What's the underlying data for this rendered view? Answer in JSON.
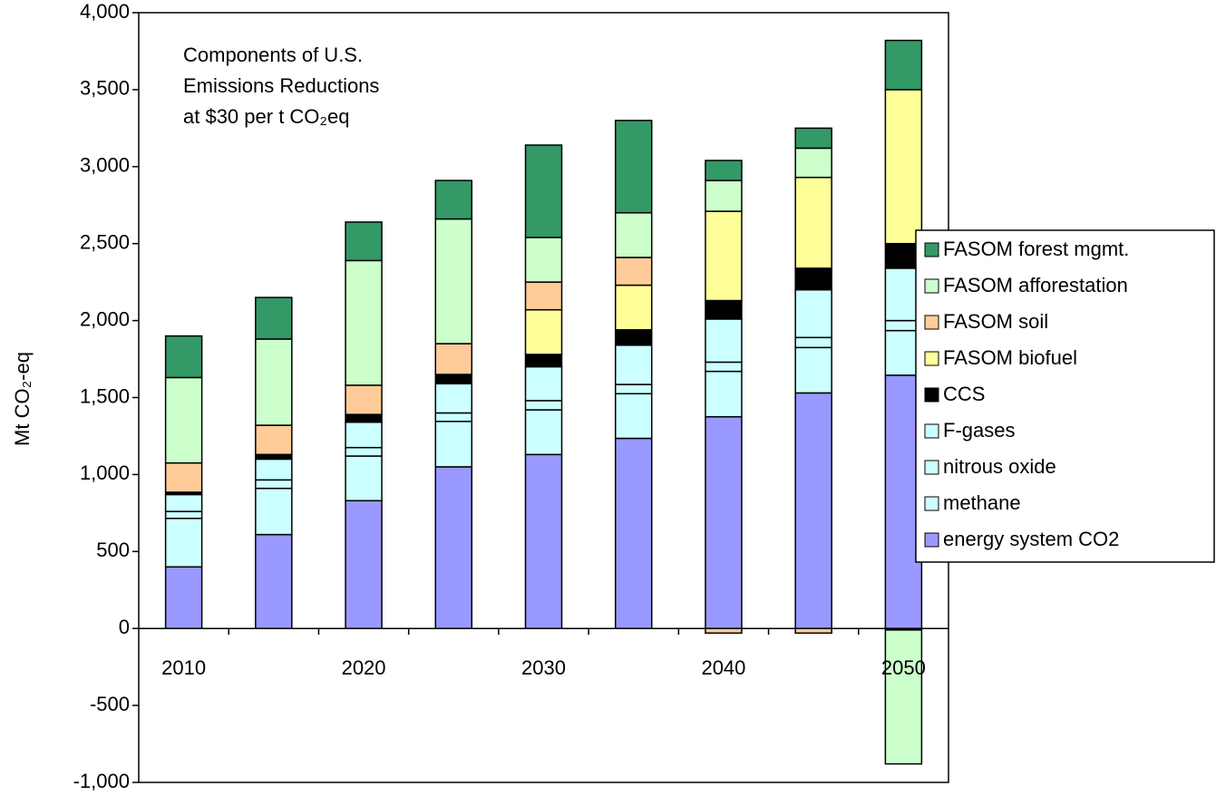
{
  "chart_data": {
    "type": "stacked_bar",
    "title": [
      "Components of U.S.",
      "Emissions Reductions",
      "at $30 per t CO₂eq"
    ],
    "y_label": "Mt CO₂-eq",
    "categories": [
      "2010",
      null,
      "2020",
      null,
      "2030",
      null,
      "2040",
      null,
      "2050"
    ],
    "series": [
      {
        "name": "energy system CO2",
        "color": "#9999ff",
        "values": [
          400,
          610,
          830,
          1050,
          1130,
          1235,
          1375,
          1530,
          1645
        ]
      },
      {
        "name": "methane",
        "color": "#ccffff",
        "values": [
          315,
          300,
          290,
          295,
          290,
          290,
          295,
          295,
          290
        ]
      },
      {
        "name": "nitrous oxide",
        "color": "#ccffff",
        "values": [
          45,
          55,
          55,
          55,
          60,
          60,
          60,
          65,
          65
        ]
      },
      {
        "name": "F-gases",
        "color": "#ccffff",
        "values": [
          110,
          135,
          165,
          190,
          220,
          255,
          280,
          310,
          340
        ]
      },
      {
        "name": "CCS",
        "color": "#000000",
        "values": [
          15,
          30,
          50,
          60,
          80,
          100,
          120,
          140,
          160
        ]
      },
      {
        "name": "FASOM biofuel",
        "color": "#ffff99",
        "values": [
          0,
          0,
          0,
          0,
          290,
          290,
          580,
          590,
          1000
        ]
      },
      {
        "name": "FASOM soil",
        "color": "#ffcc99",
        "values": [
          190,
          190,
          190,
          200,
          180,
          180,
          -30,
          -30,
          -10
        ]
      },
      {
        "name": "FASOM afforestation",
        "color": "#ccffcc",
        "values": [
          555,
          560,
          810,
          810,
          290,
          290,
          200,
          190,
          -870
        ]
      },
      {
        "name": "FASOM forest mgmt.",
        "color": "#339966",
        "values": [
          270,
          270,
          250,
          250,
          600,
          600,
          130,
          130,
          320
        ]
      }
    ],
    "ylim": [
      -1000,
      4000
    ],
    "yticks": [
      {
        "value": -1000,
        "label": "-1,000"
      },
      -500,
      0,
      500,
      {
        "value": 1000,
        "label": "1,000"
      },
      {
        "value": 1500,
        "label": "1,500"
      },
      {
        "value": 2000,
        "label": "2,000"
      },
      {
        "value": 2500,
        "label": "2,500"
      },
      {
        "value": 3000,
        "label": "3,000"
      },
      {
        "value": 3500,
        "label": "3,500"
      },
      {
        "value": 4000,
        "label": "4,000"
      }
    ],
    "legend": "right"
  }
}
